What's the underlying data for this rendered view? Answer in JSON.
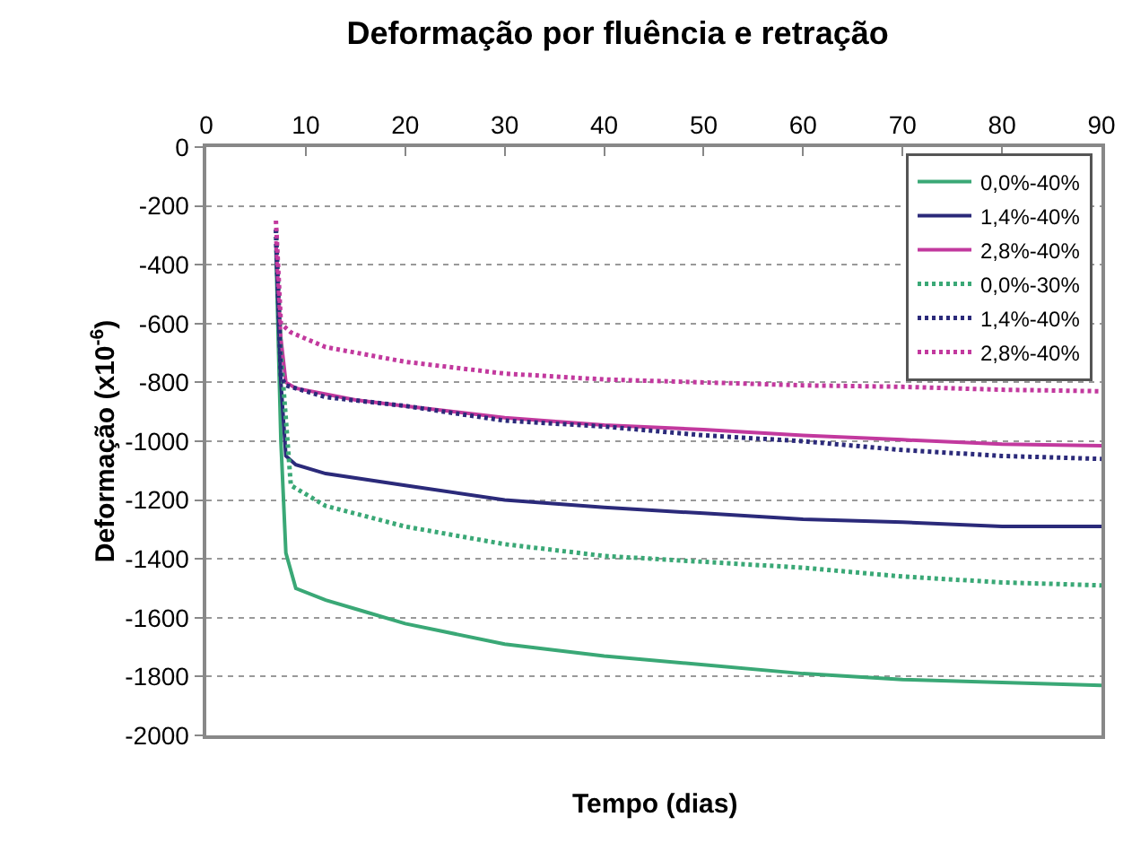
{
  "chart_data": {
    "type": "line",
    "title": "Deformação por fluência e retração",
    "xlabel": "Tempo (dias)",
    "ylabel": "Deformação (x10$^{-6}$)",
    "xlim": [
      0,
      90
    ],
    "xticks": [
      0,
      10,
      20,
      30,
      40,
      50,
      60,
      70,
      80,
      90
    ],
    "ylim": [
      -2000,
      0
    ],
    "yticks": [
      -2000,
      -1800,
      -1600,
      -1400,
      -1200,
      -1000,
      -800,
      -600,
      -400,
      -200,
      0
    ],
    "grid": "y",
    "legend": "top right",
    "marker": "none",
    "series": [
      {
        "name": "0,0%-40%",
        "color": "#3aa876",
        "line_style": "solid",
        "x": [
          7,
          7.5,
          8,
          9,
          12,
          16,
          20,
          30,
          40,
          50,
          60,
          70,
          80,
          90
        ],
        "values": [
          -350,
          -1000,
          -1380,
          -1500,
          -1540,
          -1580,
          -1620,
          -1690,
          -1730,
          -1760,
          -1790,
          -1810,
          -1820,
          -1830
        ]
      },
      {
        "name": "1,4%-40%",
        "color": "#2b2a7a",
        "line_style": "solid",
        "x": [
          7,
          7.5,
          8,
          9,
          12,
          20,
          30,
          40,
          50,
          60,
          70,
          80,
          90
        ],
        "values": [
          -330,
          -800,
          -1050,
          -1080,
          -1110,
          -1150,
          -1200,
          -1225,
          -1245,
          -1265,
          -1275,
          -1290,
          -1290
        ]
      },
      {
        "name": "2,8%-40%",
        "color": "#c2399e",
        "line_style": "solid",
        "x": [
          7,
          7.5,
          8,
          9,
          15,
          20,
          30,
          40,
          50,
          60,
          70,
          80,
          90
        ],
        "values": [
          -320,
          -650,
          -800,
          -820,
          -860,
          -880,
          -920,
          -945,
          -960,
          -980,
          -995,
          -1010,
          -1015
        ]
      },
      {
        "name": "0,0%-30%",
        "color": "#3aa876",
        "line_style": "dotted",
        "x": [
          7,
          7.5,
          8.5,
          12,
          20,
          30,
          40,
          50,
          60,
          70,
          80,
          90
        ],
        "values": [
          -280,
          -700,
          -1150,
          -1220,
          -1290,
          -1350,
          -1390,
          -1410,
          -1430,
          -1460,
          -1480,
          -1490
        ]
      },
      {
        "name": "1,4%-40%",
        "color": "#2b2a7a",
        "line_style": "dotted",
        "x": [
          7,
          7.5,
          8,
          12,
          20,
          30,
          40,
          50,
          60,
          70,
          80,
          90
        ],
        "values": [
          -280,
          -780,
          -810,
          -850,
          -880,
          -930,
          -950,
          -980,
          -1000,
          -1030,
          -1050,
          -1060
        ]
      },
      {
        "name": "2,8%-40%",
        "color": "#c2399e",
        "line_style": "dotted",
        "x": [
          7,
          7.5,
          8.5,
          12,
          20,
          30,
          40,
          50,
          60,
          70,
          80,
          90
        ],
        "values": [
          -250,
          -600,
          -630,
          -680,
          -730,
          -770,
          -790,
          -800,
          -810,
          -815,
          -825,
          -830
        ]
      }
    ]
  }
}
